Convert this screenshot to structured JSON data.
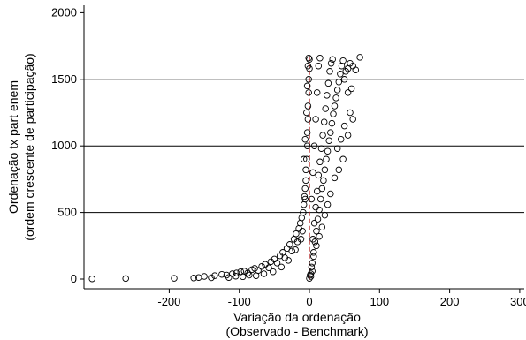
{
  "chart_data": {
    "type": "scatter",
    "xlabel_lines": [
      "Variação da ordenação",
      "(Observado - Benchmark)"
    ],
    "ylabel_lines": [
      "Ordenação tx part enem",
      "(ordem crescente de participação)"
    ],
    "xlim": [
      -320,
      310
    ],
    "ylim": [
      -30,
      2080
    ],
    "x_ticks": [
      -200,
      -100,
      0,
      100,
      200,
      300
    ],
    "x_tick_labels": [
      "-200",
      "-100",
      "0",
      "100",
      "200",
      "300"
    ],
    "y_ticks": [
      0,
      500,
      1000,
      1500,
      2000
    ],
    "y_tick_labels": [
      "0",
      "500",
      "1000",
      "1500",
      "2000"
    ],
    "y_gridlines": [
      500,
      1000,
      1500
    ],
    "grid": "horizontal",
    "legend": "none",
    "reference_line": {
      "x": 0,
      "style": "dashed",
      "color": "#b02020"
    },
    "marker": "hollow-circle",
    "series": [
      {
        "points": [
          [
            -310,
            2
          ],
          [
            -262,
            4
          ],
          [
            -193,
            6
          ],
          [
            -165,
            8
          ],
          [
            -158,
            12
          ],
          [
            -150,
            20
          ],
          [
            -140,
            10
          ],
          [
            -135,
            26
          ],
          [
            -125,
            35
          ],
          [
            -118,
            30
          ],
          [
            -110,
            40
          ],
          [
            -104,
            46
          ],
          [
            -98,
            55
          ],
          [
            -93,
            60
          ],
          [
            -88,
            45
          ],
          [
            -82,
            70
          ],
          [
            -78,
            80
          ],
          [
            -73,
            65
          ],
          [
            -68,
            95
          ],
          [
            -63,
            110
          ],
          [
            -58,
            85
          ],
          [
            -55,
            130
          ],
          [
            -50,
            150
          ],
          [
            -46,
            120
          ],
          [
            -42,
            175
          ],
          [
            -38,
            200
          ],
          [
            -35,
            160
          ],
          [
            -32,
            230
          ],
          [
            -28,
            260
          ],
          [
            -25,
            210
          ],
          [
            -22,
            300
          ],
          [
            -19,
            340
          ],
          [
            -17,
            280
          ],
          [
            -15,
            380
          ],
          [
            -13,
            420
          ],
          [
            -11,
            460
          ],
          [
            -10,
            360
          ],
          [
            -9,
            500
          ],
          [
            -8,
            560
          ],
          [
            -7,
            620
          ],
          [
            -6,
            680
          ],
          [
            -5,
            740
          ],
          [
            -5,
            820
          ],
          [
            -4,
            900
          ],
          [
            -3,
            1000
          ],
          [
            -3,
            1100
          ],
          [
            -2,
            1200
          ],
          [
            -2,
            1300
          ],
          [
            -1,
            1400
          ],
          [
            -1,
            1500
          ],
          [
            0,
            1580
          ],
          [
            0,
            1650
          ],
          [
            -6,
            600
          ],
          [
            -12,
            300
          ],
          [
            -20,
            220
          ],
          [
            -30,
            140
          ],
          [
            -40,
            90
          ],
          [
            -52,
            55
          ],
          [
            -65,
            40
          ],
          [
            -76,
            25
          ],
          [
            -86,
            30
          ],
          [
            -95,
            18
          ],
          [
            -105,
            22
          ],
          [
            -115,
            12
          ],
          [
            -8,
            900
          ],
          [
            -6,
            1050
          ],
          [
            -4,
            1250
          ],
          [
            -3,
            1450
          ],
          [
            -2,
            1600
          ],
          [
            -1,
            1660
          ],
          [
            2,
            40
          ],
          [
            4,
            120
          ],
          [
            6,
            200
          ],
          [
            8,
            280
          ],
          [
            10,
            360
          ],
          [
            12,
            450
          ],
          [
            14,
            520
          ],
          [
            16,
            600
          ],
          [
            18,
            680
          ],
          [
            20,
            740
          ],
          [
            22,
            820
          ],
          [
            24,
            900
          ],
          [
            26,
            960
          ],
          [
            28,
            1040
          ],
          [
            30,
            1100
          ],
          [
            32,
            1170
          ],
          [
            34,
            1240
          ],
          [
            36,
            1300
          ],
          [
            38,
            1360
          ],
          [
            40,
            1420
          ],
          [
            42,
            1480
          ],
          [
            44,
            1540
          ],
          [
            46,
            1600
          ],
          [
            48,
            1640
          ],
          [
            5,
            300
          ],
          [
            7,
            420
          ],
          [
            9,
            540
          ],
          [
            11,
            660
          ],
          [
            13,
            780
          ],
          [
            15,
            880
          ],
          [
            17,
            980
          ],
          [
            19,
            1080
          ],
          [
            21,
            1180
          ],
          [
            23,
            1280
          ],
          [
            25,
            1380
          ],
          [
            27,
            1470
          ],
          [
            29,
            1560
          ],
          [
            31,
            1620
          ],
          [
            33,
            1650
          ],
          [
            3,
            600
          ],
          [
            5,
            800
          ],
          [
            7,
            1000
          ],
          [
            9,
            1200
          ],
          [
            11,
            1400
          ],
          [
            13,
            1600
          ],
          [
            15,
            1660
          ],
          [
            50,
            1500
          ],
          [
            52,
            1560
          ],
          [
            55,
            1580
          ],
          [
            58,
            1620
          ],
          [
            62,
            1600
          ],
          [
            66,
            1570
          ],
          [
            72,
            1665
          ],
          [
            55,
            1400
          ],
          [
            60,
            1430
          ],
          [
            58,
            1250
          ],
          [
            62,
            1200
          ],
          [
            50,
            1150
          ],
          [
            45,
            1050
          ],
          [
            40,
            980
          ],
          [
            55,
            1080
          ],
          [
            48,
            900
          ],
          [
            42,
            820
          ],
          [
            36,
            760
          ],
          [
            30,
            640
          ],
          [
            26,
            560
          ],
          [
            22,
            480
          ],
          [
            18,
            390
          ],
          [
            14,
            320
          ],
          [
            10,
            250
          ],
          [
            6,
            170
          ],
          [
            3,
            90
          ],
          [
            1,
            30
          ],
          [
            0,
            5
          ],
          [
            2,
            20
          ],
          [
            4,
            60
          ]
        ]
      }
    ]
  }
}
